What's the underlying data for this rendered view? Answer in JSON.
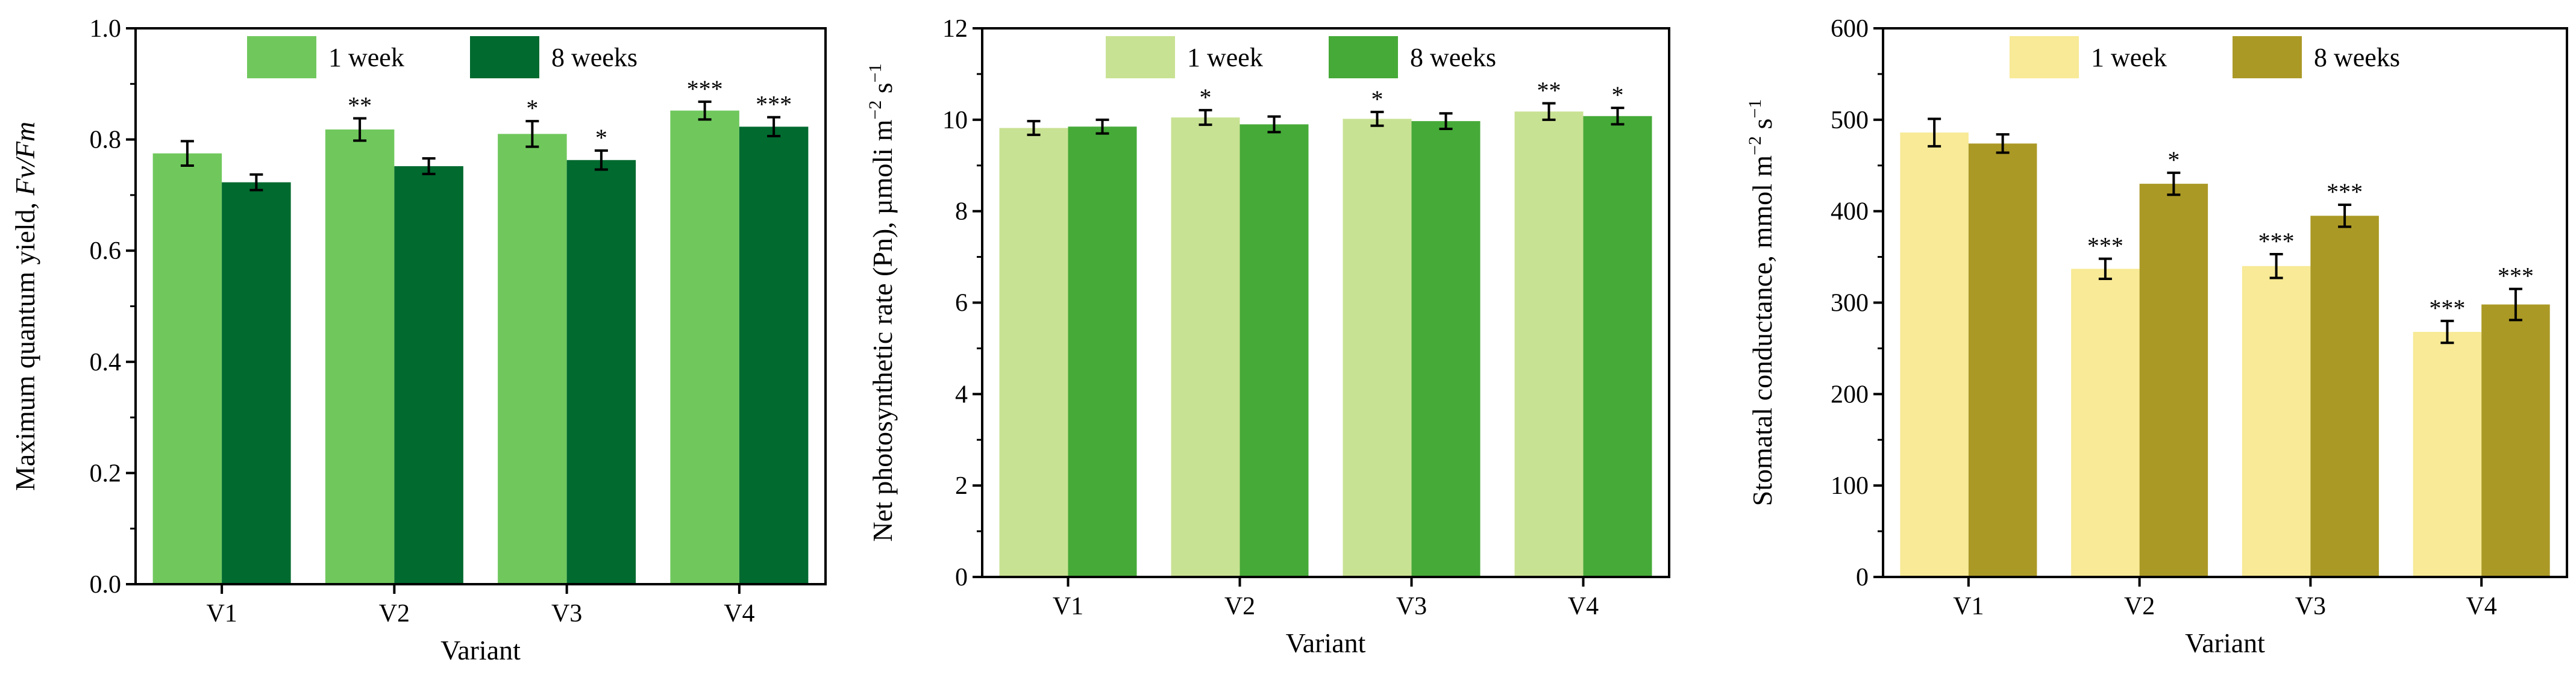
{
  "chart_data": [
    {
      "type": "bar",
      "title": "",
      "xlabel": "Variant",
      "ylabel": "Maximum quantum yield, Fv/Fm",
      "ylabel_plain": "Maximum quantum yield, ",
      "ylabel_italic": "Fv/Fm",
      "ylim": [
        0.0,
        1.0
      ],
      "yticks": [
        "0.0",
        "0.2",
        "0.4",
        "0.6",
        "0.8",
        "1.0"
      ],
      "categories": [
        "V1",
        "V2",
        "V3",
        "V4"
      ],
      "series": [
        {
          "name": "1 week",
          "color": "#70c85d",
          "values": [
            0.775,
            0.818,
            0.81,
            0.852
          ],
          "errors": [
            0.022,
            0.02,
            0.023,
            0.016
          ],
          "annotations": [
            "",
            "**",
            "*",
            "***"
          ]
        },
        {
          "name": "8 weeks",
          "color": "#006a2f",
          "values": [
            0.723,
            0.752,
            0.763,
            0.823
          ],
          "errors": [
            0.014,
            0.014,
            0.017,
            0.017
          ],
          "annotations": [
            "",
            "",
            "*",
            "***"
          ]
        }
      ]
    },
    {
      "type": "bar",
      "title": "",
      "xlabel": "Variant",
      "ylabel": "Net photosynthetic rate (Pn), µmoli m−2 s−1",
      "ylabel_plain": "Net photosynthetic rate (Pn), µmoli m",
      "ylabel_sup1": "−2",
      "ylabel_mid": " s",
      "ylabel_sup2": "−1",
      "ylim": [
        0,
        12
      ],
      "yticks": [
        "0",
        "2",
        "4",
        "6",
        "8",
        "10",
        "12"
      ],
      "categories": [
        "V1",
        "V2",
        "V3",
        "V4"
      ],
      "series": [
        {
          "name": "1 week",
          "color": "#c8e293",
          "values": [
            9.82,
            10.05,
            10.02,
            10.18
          ],
          "errors": [
            0.15,
            0.16,
            0.15,
            0.18
          ],
          "annotations": [
            "",
            "*",
            "*",
            "**"
          ]
        },
        {
          "name": "8 weeks",
          "color": "#46aa38",
          "values": [
            9.85,
            9.9,
            9.97,
            10.08
          ],
          "errors": [
            0.15,
            0.17,
            0.17,
            0.18
          ],
          "annotations": [
            "",
            "",
            "",
            "*"
          ]
        }
      ]
    },
    {
      "type": "bar",
      "title": "",
      "xlabel": "Variant",
      "ylabel": "Stomatal conductance, mmol m−2 s−1",
      "ylabel_plain": "Stomatal conductance, mmol m",
      "ylabel_sup1": "−2",
      "ylabel_mid": " s",
      "ylabel_sup2": "−1",
      "ylim": [
        0,
        600
      ],
      "yticks": [
        "0",
        "100",
        "200",
        "300",
        "400",
        "500",
        "600"
      ],
      "categories": [
        "V1",
        "V2",
        "V3",
        "V4"
      ],
      "series": [
        {
          "name": "1 week",
          "color": "#f8ea96",
          "values": [
            486,
            337,
            340,
            268
          ],
          "errors": [
            15,
            11,
            13,
            12
          ],
          "annotations": [
            "",
            "***",
            "***",
            "***"
          ]
        },
        {
          "name": "8 weeks",
          "color": "#ab9926",
          "values": [
            474,
            430,
            395,
            298
          ],
          "errors": [
            10,
            12,
            12,
            17
          ],
          "annotations": [
            "",
            "*",
            "***",
            "***"
          ]
        }
      ]
    }
  ]
}
